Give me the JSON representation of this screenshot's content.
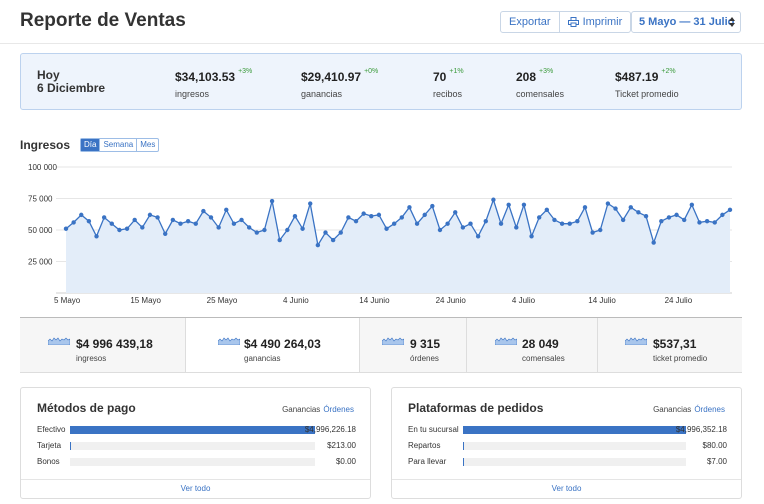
{
  "header": {
    "title": "Reporte de Ventas",
    "export_label": "Exportar",
    "print_label": "Imprimir",
    "date_range": "5 Mayo — 31 Julio"
  },
  "summary": {
    "today_label": "Hoy",
    "today_date": "6 Diciembre",
    "metrics": [
      {
        "value": "$34,103.53",
        "change": "+3%",
        "label": "ingresos"
      },
      {
        "value": "$29,410.97",
        "change": "+0%",
        "label": "ganancias"
      },
      {
        "value": "70",
        "change": "+1%",
        "label": "recibos"
      },
      {
        "value": "208",
        "change": "+3%",
        "label": "comensales"
      },
      {
        "value": "$487.19",
        "change": "+2%",
        "label": "Ticket promedio"
      }
    ]
  },
  "chart": {
    "title": "Ingresos",
    "tabs": [
      "Día",
      "Semana",
      "Mes"
    ],
    "active_tab": "Día"
  },
  "chart_data": {
    "type": "area",
    "title": "Ingresos",
    "ylim": [
      0,
      100000
    ],
    "y_ticks": [
      "100 000",
      "75 000",
      "50 000",
      "25 000"
    ],
    "x_tick_labels": [
      "5 Mayo",
      "15 Mayo",
      "25 Mayo",
      "4 Junio",
      "14 Junio",
      "24 Junio",
      "4 Julio",
      "14 Julio",
      "24 Julio"
    ],
    "grid": true,
    "series": [
      {
        "values": [
          51000,
          56000,
          62000,
          57000,
          45000,
          60000,
          55000,
          50000,
          51000,
          58000,
          52000,
          62000,
          60000,
          47000,
          58000,
          55000,
          57000,
          55000,
          65000,
          60000,
          52000,
          66000,
          55000,
          58000,
          52000,
          48000,
          50000,
          73000,
          42000,
          50000,
          61000,
          51000,
          71000,
          38000,
          48000,
          42000,
          48000,
          60000,
          57000,
          63000,
          61000,
          62000,
          51000,
          55000,
          60000,
          68000,
          55000,
          62000,
          69000,
          50000,
          55000,
          64000,
          52000,
          55000,
          45000,
          57000,
          74000,
          55000,
          70000,
          52000,
          70000,
          45000,
          60000,
          66000,
          58000,
          55000,
          55000,
          57000,
          68000,
          48000,
          50000,
          71000,
          67000,
          58000,
          68000,
          64000,
          61000,
          40000,
          57000,
          60000,
          62000,
          58000,
          70000,
          56000,
          57000,
          56000,
          62000,
          66000
        ]
      }
    ]
  },
  "totals": [
    {
      "value": "$4 996 439,18",
      "label": "ingresos"
    },
    {
      "value": "$4 490 264,03",
      "label": "ganancias"
    },
    {
      "value": "9 315",
      "label": "órdenes"
    },
    {
      "value": "28 049",
      "label": "comensales"
    },
    {
      "value": "$537,31",
      "label": "ticket promedio"
    }
  ],
  "payments": {
    "title": "Métodos de pago",
    "tab_active": "Ganancias",
    "tab_link": "Órdenes",
    "rows": [
      {
        "label": "Efectivo",
        "value": "$4,996,226.18",
        "fraction": 1.0
      },
      {
        "label": "Tarjeta",
        "value": "$213.00",
        "fraction": 0.004
      },
      {
        "label": "Bonos",
        "value": "$0.00",
        "fraction": 0
      }
    ],
    "footer": "Ver todo"
  },
  "platforms": {
    "title": "Plataformas de pedidos",
    "tab_active": "Ganancias",
    "tab_link": "Órdenes",
    "rows": [
      {
        "label": "En tu sucursal",
        "value": "$4,996,352.18",
        "fraction": 1.0
      },
      {
        "label": "Repartos",
        "value": "$80.00",
        "fraction": 0.004
      },
      {
        "label": "Para llevar",
        "value": "$7.00",
        "fraction": 0.002
      }
    ],
    "footer": "Ver todo"
  },
  "colors": {
    "accent": "#3a73c4",
    "area_fill": "#e3edf9",
    "positive": "#3a9a3a"
  }
}
